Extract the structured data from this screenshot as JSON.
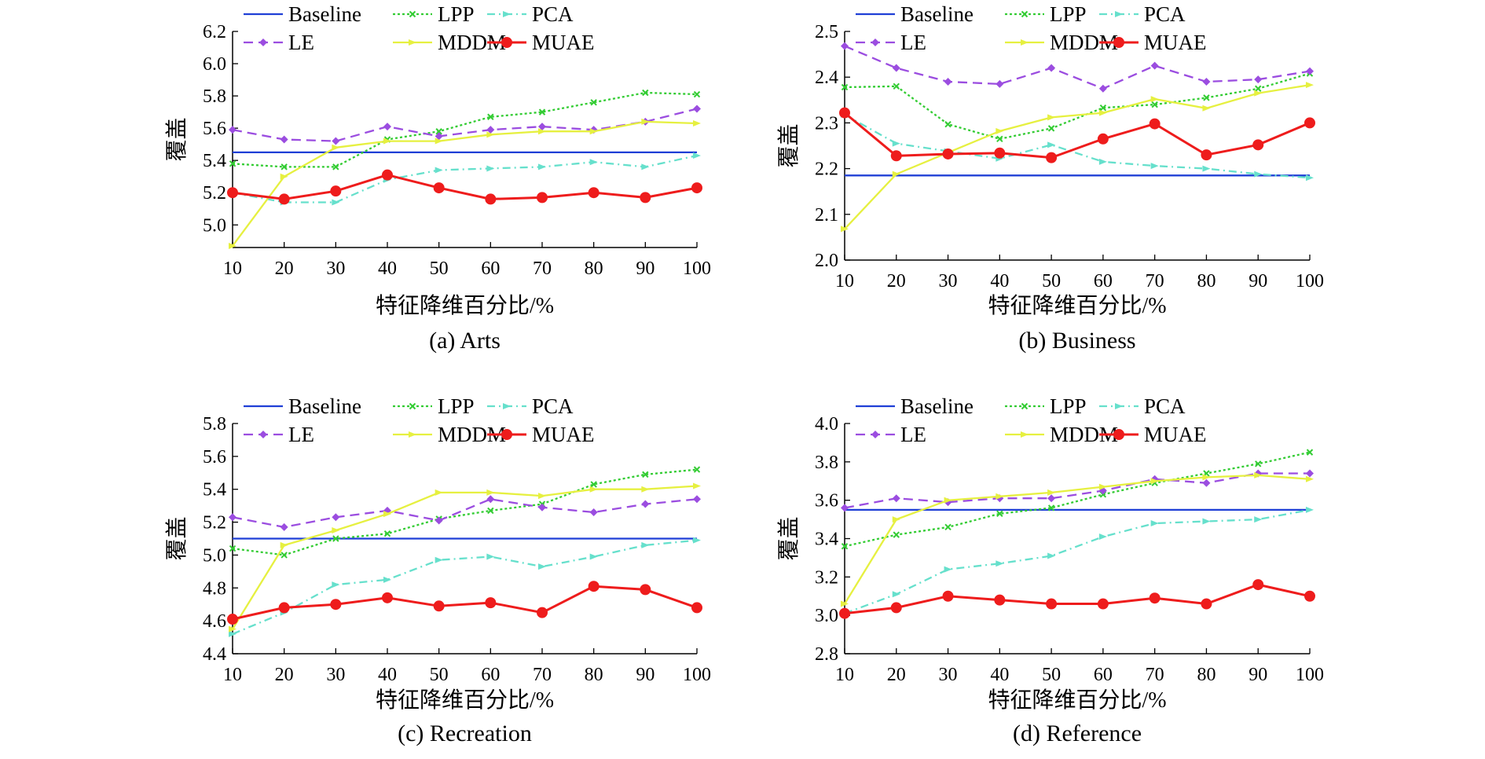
{
  "x_axis_label": "特征降维百分比/%",
  "y_axis_label": "覆盖",
  "series_styles": {
    "Baseline": {
      "color": "#1f3fd6",
      "dash": "",
      "marker": "none"
    },
    "LPP": {
      "color": "#33cc33",
      "dash": "3,3",
      "marker": "x"
    },
    "PCA": {
      "color": "#66e0cc",
      "dash": "10,5,2,5",
      "marker": "tri"
    },
    "LE": {
      "color": "#9b4de0",
      "dash": "12,7",
      "marker": "diamond"
    },
    "MDDM": {
      "color": "#e6f040",
      "dash": "",
      "marker": "tri"
    },
    "MUAE": {
      "color": "#ee1c1c",
      "dash": "",
      "marker": "circle"
    }
  },
  "chart_data": [
    {
      "type": "line",
      "title": "(a) Arts",
      "xlabel": "特征降维百分比/%",
      "ylabel": "覆盖",
      "x": [
        10,
        20,
        30,
        40,
        50,
        60,
        70,
        80,
        90,
        100
      ],
      "ylim": [
        4.86,
        6.2
      ],
      "yticks": [
        "5.0",
        "5.2",
        "5.4",
        "5.6",
        "5.8",
        "6.0",
        "6.2"
      ],
      "legend_position": "top",
      "series": [
        {
          "name": "Baseline",
          "values": [
            5.45,
            5.45,
            5.45,
            5.45,
            5.45,
            5.45,
            5.45,
            5.45,
            5.45,
            5.45
          ]
        },
        {
          "name": "LPP",
          "values": [
            5.38,
            5.36,
            5.36,
            5.53,
            5.58,
            5.67,
            5.7,
            5.76,
            5.82,
            5.81
          ]
        },
        {
          "name": "PCA",
          "values": [
            5.2,
            5.14,
            5.14,
            5.28,
            5.34,
            5.35,
            5.36,
            5.39,
            5.36,
            5.43
          ]
        },
        {
          "name": "LE",
          "values": [
            5.59,
            5.53,
            5.52,
            5.61,
            5.55,
            5.59,
            5.61,
            5.59,
            5.64,
            5.72
          ]
        },
        {
          "name": "MDDM",
          "values": [
            4.87,
            5.3,
            5.48,
            5.52,
            5.52,
            5.56,
            5.58,
            5.58,
            5.64,
            5.63
          ]
        },
        {
          "name": "MUAE",
          "values": [
            5.2,
            5.16,
            5.21,
            5.31,
            5.23,
            5.16,
            5.17,
            5.2,
            5.17,
            5.23
          ]
        }
      ]
    },
    {
      "type": "line",
      "title": "(b) Business",
      "xlabel": "特征降维百分比/%",
      "ylabel": "覆盖",
      "x": [
        10,
        20,
        30,
        40,
        50,
        60,
        70,
        80,
        90,
        100
      ],
      "ylim": [
        2.0,
        2.5
      ],
      "yticks": [
        "2.0",
        "2.1",
        "2.2",
        "2.3",
        "2.4",
        "2.5"
      ],
      "legend_position": "top",
      "series": [
        {
          "name": "Baseline",
          "values": [
            2.185,
            2.185,
            2.185,
            2.185,
            2.185,
            2.185,
            2.185,
            2.185,
            2.185,
            2.185
          ]
        },
        {
          "name": "LPP",
          "values": [
            2.378,
            2.38,
            2.297,
            2.265,
            2.288,
            2.333,
            2.34,
            2.355,
            2.375,
            2.408
          ]
        },
        {
          "name": "PCA",
          "values": [
            2.318,
            2.255,
            2.238,
            2.222,
            2.252,
            2.215,
            2.206,
            2.2,
            2.188,
            2.18
          ]
        },
        {
          "name": "LE",
          "values": [
            2.468,
            2.42,
            2.39,
            2.385,
            2.42,
            2.375,
            2.425,
            2.39,
            2.395,
            2.413
          ]
        },
        {
          "name": "MDDM",
          "values": [
            2.068,
            2.188,
            2.235,
            2.282,
            2.312,
            2.322,
            2.352,
            2.332,
            2.365,
            2.383
          ]
        },
        {
          "name": "MUAE",
          "values": [
            2.322,
            2.228,
            2.232,
            2.234,
            2.224,
            2.265,
            2.298,
            2.23,
            2.252,
            2.3
          ]
        }
      ]
    },
    {
      "type": "line",
      "title": "(c) Recreation",
      "xlabel": "特征降维百分比/%",
      "ylabel": "覆盖",
      "x": [
        10,
        20,
        30,
        40,
        50,
        60,
        70,
        80,
        90,
        100
      ],
      "ylim": [
        4.4,
        5.8
      ],
      "yticks": [
        "4.4",
        "4.6",
        "4.8",
        "5.0",
        "5.2",
        "5.4",
        "5.6",
        "5.8"
      ],
      "legend_position": "top",
      "series": [
        {
          "name": "Baseline",
          "values": [
            5.1,
            5.1,
            5.1,
            5.1,
            5.1,
            5.1,
            5.1,
            5.1,
            5.1,
            5.1
          ]
        },
        {
          "name": "LPP",
          "values": [
            5.04,
            5.0,
            5.1,
            5.13,
            5.22,
            5.27,
            5.31,
            5.43,
            5.49,
            5.52
          ]
        },
        {
          "name": "PCA",
          "values": [
            4.52,
            4.65,
            4.82,
            4.85,
            4.97,
            4.99,
            4.93,
            4.99,
            5.06,
            5.09
          ]
        },
        {
          "name": "LE",
          "values": [
            5.23,
            5.17,
            5.23,
            5.27,
            5.21,
            5.34,
            5.29,
            5.26,
            5.31,
            5.34
          ]
        },
        {
          "name": "MDDM",
          "values": [
            4.55,
            5.06,
            5.15,
            5.25,
            5.38,
            5.38,
            5.36,
            5.4,
            5.4,
            5.42
          ]
        },
        {
          "name": "MUAE",
          "values": [
            4.61,
            4.68,
            4.7,
            4.74,
            4.69,
            4.71,
            4.65,
            4.81,
            4.79,
            4.68
          ]
        }
      ]
    },
    {
      "type": "line",
      "title": "(d) Reference",
      "xlabel": "特征降维百分比/%",
      "ylabel": "覆盖",
      "x": [
        10,
        20,
        30,
        40,
        50,
        60,
        70,
        80,
        90,
        100
      ],
      "ylim": [
        2.8,
        4.0
      ],
      "yticks": [
        "2.8",
        "3.0",
        "3.2",
        "3.4",
        "3.6",
        "3.8",
        "4.0"
      ],
      "legend_position": "top",
      "series": [
        {
          "name": "Baseline",
          "values": [
            3.55,
            3.55,
            3.55,
            3.55,
            3.55,
            3.55,
            3.55,
            3.55,
            3.55,
            3.55
          ]
        },
        {
          "name": "LPP",
          "values": [
            3.36,
            3.42,
            3.46,
            3.53,
            3.56,
            3.63,
            3.69,
            3.74,
            3.79,
            3.85
          ]
        },
        {
          "name": "PCA",
          "values": [
            3.01,
            3.11,
            3.24,
            3.27,
            3.31,
            3.41,
            3.48,
            3.49,
            3.5,
            3.55
          ]
        },
        {
          "name": "LE",
          "values": [
            3.56,
            3.61,
            3.59,
            3.61,
            3.61,
            3.65,
            3.71,
            3.69,
            3.74,
            3.74
          ]
        },
        {
          "name": "MDDM",
          "values": [
            3.06,
            3.5,
            3.6,
            3.62,
            3.64,
            3.67,
            3.7,
            3.72,
            3.73,
            3.71
          ]
        },
        {
          "name": "MUAE",
          "values": [
            3.01,
            3.04,
            3.1,
            3.08,
            3.06,
            3.06,
            3.09,
            3.06,
            3.16,
            3.1
          ]
        }
      ]
    }
  ]
}
